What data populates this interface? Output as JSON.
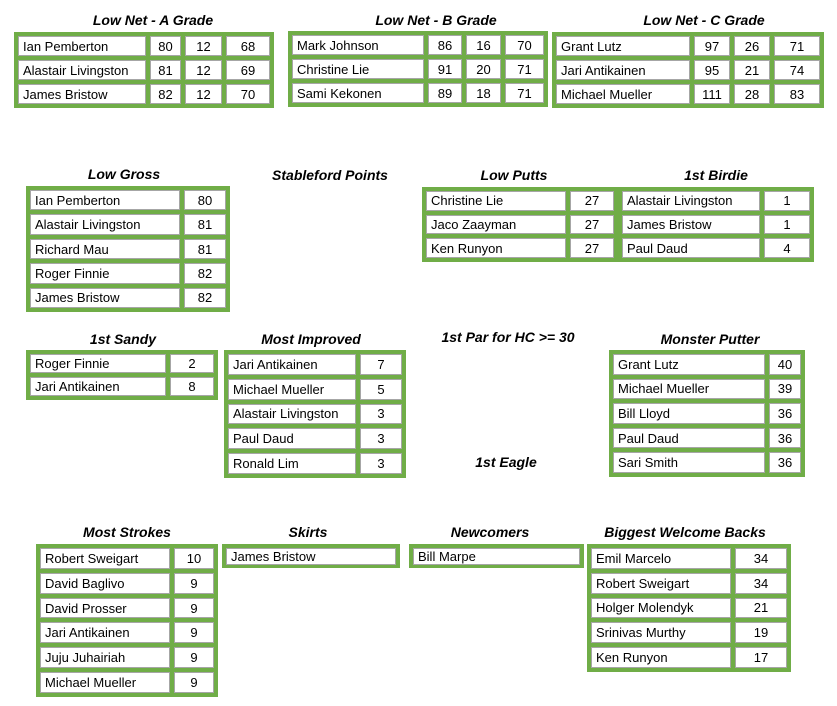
{
  "sections": [
    {
      "title": "Low Net - A Grade",
      "rows": [
        [
          "Ian Pemberton",
          80,
          12,
          68
        ],
        [
          "Alastair Livingston",
          81,
          12,
          69
        ],
        [
          "James Bristow",
          82,
          12,
          70
        ]
      ]
    },
    {
      "title": "Low Net - B Grade",
      "rows": [
        [
          "Mark Johnson",
          86,
          16,
          70
        ],
        [
          "Christine Lie",
          91,
          20,
          71
        ],
        [
          "Sami Kekonen",
          89,
          18,
          71
        ]
      ]
    },
    {
      "title": "Low Net - C Grade",
      "rows": [
        [
          "Grant Lutz",
          97,
          26,
          71
        ],
        [
          "Jari Antikainen",
          95,
          21,
          74
        ],
        [
          "Michael Mueller",
          111,
          28,
          83
        ]
      ]
    },
    {
      "title": "Low Gross",
      "rows": [
        [
          "Ian Pemberton",
          80
        ],
        [
          "Alastair Livingston",
          81
        ],
        [
          "Richard Mau",
          81
        ],
        [
          "Roger Finnie",
          82
        ],
        [
          "James Bristow",
          82
        ]
      ]
    },
    {
      "title": "Stableford Points"
    },
    {
      "title": "Low Putts",
      "rows": [
        [
          "Christine Lie",
          27
        ],
        [
          "Jaco Zaayman",
          27
        ],
        [
          "Ken Runyon",
          27
        ]
      ]
    },
    {
      "title": "1st Birdie",
      "rows": [
        [
          "Alastair Livingston",
          1
        ],
        [
          "James Bristow",
          1
        ],
        [
          "Paul Daud",
          4
        ]
      ]
    },
    {
      "title": "1st Sandy",
      "rows": [
        [
          "Roger Finnie",
          2
        ],
        [
          "Jari Antikainen",
          8
        ]
      ]
    },
    {
      "title": "Most Improved",
      "rows": [
        [
          "Jari Antikainen",
          7
        ],
        [
          "Michael Mueller",
          5
        ],
        [
          "Alastair Livingston",
          3
        ],
        [
          "Paul Daud",
          3
        ],
        [
          "Ronald Lim",
          3
        ]
      ]
    },
    {
      "title": "1st Par for HC >= 30"
    },
    {
      "title": "Monster Putter",
      "rows": [
        [
          "Grant Lutz",
          40
        ],
        [
          "Michael Mueller",
          39
        ],
        [
          "Bill Lloyd",
          36
        ],
        [
          "Paul Daud",
          36
        ],
        [
          "Sari Smith",
          36
        ]
      ]
    },
    {
      "title": "1st Eagle"
    },
    {
      "title": "Most Strokes",
      "rows": [
        [
          "Robert Sweigart",
          10
        ],
        [
          "David Baglivo",
          9
        ],
        [
          "David Prosser",
          9
        ],
        [
          "Jari Antikainen",
          9
        ],
        [
          "Juju Juhairiah",
          9
        ],
        [
          "Michael Mueller",
          9
        ]
      ]
    },
    {
      "title": "Skirts",
      "rows": [
        [
          "James Bristow"
        ]
      ]
    },
    {
      "title": "Newcomers",
      "rows": [
        [
          "Bill Marpe"
        ]
      ]
    },
    {
      "title": "Biggest Welcome Backs",
      "rows": [
        [
          "Emil Marcelo",
          34
        ],
        [
          "Robert Sweigart",
          34
        ],
        [
          "Holger Molendyk",
          21
        ],
        [
          "Srinivas Murthy",
          19
        ],
        [
          "Ken Runyon",
          17
        ]
      ]
    }
  ]
}
